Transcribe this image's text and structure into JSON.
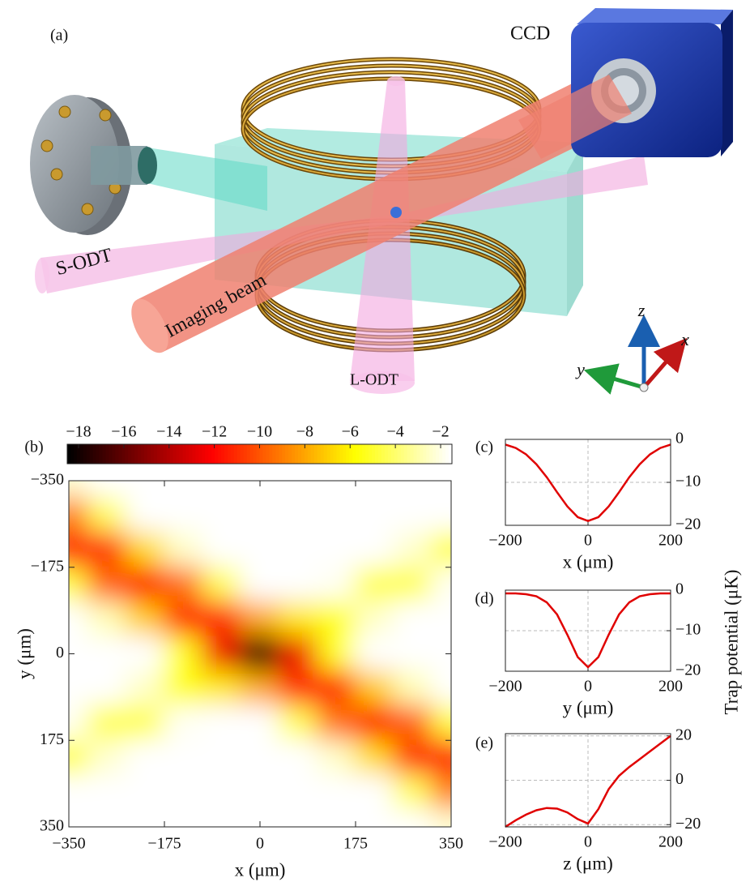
{
  "panel_a": {
    "label": "(a)",
    "ccd": "CCD",
    "s_odt": "S-ODT",
    "imaging_beam": "Imaging beam",
    "l_odt": "L-ODT",
    "axes": {
      "x": "x",
      "y": "y",
      "z": "z"
    }
  },
  "trap_potential_label": "Trap potential (μK)",
  "chart_data": [
    {
      "type": "heatmap",
      "panel_label": "(b)",
      "xlabel": "x (μm)",
      "ylabel": "y (μm)",
      "x": [
        -350,
        -280,
        -210,
        -140,
        -70,
        0,
        70,
        140,
        210,
        280,
        350
      ],
      "y": [
        -350,
        -280,
        -210,
        -140,
        -70,
        0,
        70,
        140,
        210,
        280,
        350
      ],
      "z": [
        [
          -2.3,
          -0.5,
          -0.1,
          0,
          0,
          0,
          0,
          0,
          0,
          0,
          0
        ],
        [
          -9.0,
          -4.2,
          -1.1,
          -0.2,
          0,
          0,
          0,
          0,
          0,
          -0.1,
          -0.7
        ],
        [
          -11.4,
          -11.1,
          -6.6,
          -2.4,
          -0.5,
          -0.1,
          0,
          0,
          -0.4,
          -2.3,
          -4.8
        ],
        [
          -4.7,
          -9.6,
          -12.0,
          -9.2,
          -4.3,
          -1.2,
          -0.5,
          -1.7,
          -4.4,
          -4.4,
          -1.7
        ],
        [
          -0.6,
          -2.7,
          -7.0,
          -11.3,
          -11.3,
          -7.9,
          -6.3,
          -5.4,
          -2.4,
          -0.4,
          0
        ],
        [
          0,
          -0.2,
          -1.4,
          -5.2,
          -12.5,
          -19.0,
          -12.5,
          -5.2,
          -1.4,
          -0.2,
          0
        ],
        [
          0,
          -0.4,
          -2.4,
          -5.4,
          -6.3,
          -7.9,
          -11.3,
          -11.3,
          -7.0,
          -2.7,
          -0.6
        ],
        [
          -1.7,
          -4.4,
          -4.4,
          -1.7,
          -0.5,
          -1.2,
          -4.3,
          -9.2,
          -12.0,
          -9.6,
          -4.7
        ],
        [
          -4.8,
          -2.3,
          -0.4,
          0,
          0,
          -0.1,
          -0.5,
          -2.4,
          -6.6,
          -11.1,
          -11.4
        ],
        [
          -0.7,
          -0.1,
          0,
          0,
          0,
          0,
          0,
          -0.2,
          -1.1,
          -4.2,
          -9.0
        ],
        [
          0,
          0,
          0,
          0,
          0,
          0,
          0,
          0,
          -0.1,
          -0.5,
          -2.3
        ]
      ],
      "zlim": [
        -18.5,
        -1.5
      ],
      "colormap": "hot",
      "zticks": [
        {
          "value": -18,
          "label": "−18"
        },
        {
          "value": -16,
          "label": "−16"
        },
        {
          "value": -14,
          "label": "−14"
        },
        {
          "value": -12,
          "label": "−12"
        },
        {
          "value": -10,
          "label": "−10"
        },
        {
          "value": -8,
          "label": "−8"
        },
        {
          "value": -6,
          "label": "−6"
        },
        {
          "value": -4,
          "label": "−4"
        },
        {
          "value": -2,
          "label": "−2"
        }
      ],
      "xlim": [
        -350,
        350
      ],
      "ylim": [
        -350,
        350
      ],
      "yreverse": true,
      "xticks": [
        {
          "value": -350,
          "label": "−350"
        },
        {
          "value": -175,
          "label": "−175"
        },
        0,
        175,
        350
      ],
      "yticks": [
        {
          "value": -350,
          "label": "−350"
        },
        {
          "value": -175,
          "label": "−175"
        },
        0,
        175,
        350
      ]
    },
    {
      "type": "line",
      "panel_label": "(c)",
      "xlabel": "x (μm)",
      "color": "#e00000",
      "grid": true,
      "x": [
        -200,
        -175,
        -150,
        -125,
        -100,
        -75,
        -50,
        -25,
        0,
        25,
        50,
        75,
        100,
        125,
        150,
        175,
        200
      ],
      "values": [
        -1.2,
        -2,
        -3.5,
        -5.8,
        -8.8,
        -12.3,
        -15.6,
        -18.1,
        -19,
        -18.1,
        -15.6,
        -12.3,
        -8.8,
        -5.8,
        -3.5,
        -2,
        -1.2
      ],
      "xlim": [
        -200,
        200
      ],
      "ylim": [
        -20,
        0
      ],
      "xticks": [
        {
          "value": -200,
          "label": "−200"
        },
        0,
        200
      ],
      "yticks": [
        {
          "value": -20,
          "label": "−20"
        },
        {
          "value": -10,
          "label": "−10"
        },
        0
      ]
    },
    {
      "type": "line",
      "panel_label": "(d)",
      "xlabel": "y (μm)",
      "color": "#e00000",
      "grid": true,
      "x": [
        -200,
        -175,
        -150,
        -125,
        -100,
        -75,
        -50,
        -25,
        0,
        25,
        50,
        75,
        100,
        125,
        150,
        175,
        200
      ],
      "values": [
        -0.8,
        -0.8,
        -1.0,
        -1.5,
        -3,
        -6,
        -11,
        -16.5,
        -19,
        -16.5,
        -11,
        -6,
        -3,
        -1.5,
        -1.0,
        -0.8,
        -0.8
      ],
      "xlim": [
        -200,
        200
      ],
      "ylim": [
        -20,
        0
      ],
      "xticks": [
        {
          "value": -200,
          "label": "−200"
        },
        0,
        200
      ],
      "yticks": [
        {
          "value": -20,
          "label": "−20"
        },
        {
          "value": -10,
          "label": "−10"
        },
        0
      ]
    },
    {
      "type": "line",
      "panel_label": "(e)",
      "xlabel": "z (μm)",
      "color": "#e00000",
      "grid": true,
      "x": [
        -200,
        -175,
        -150,
        -125,
        -100,
        -75,
        -50,
        -25,
        0,
        25,
        50,
        75,
        100,
        125,
        150,
        175,
        200
      ],
      "values": [
        -21,
        -18,
        -15.5,
        -13.5,
        -12.5,
        -12.8,
        -14.5,
        -17.5,
        -19.5,
        -13,
        -4,
        2,
        6,
        9.5,
        13,
        16.5,
        20
      ],
      "xlim": [
        -200,
        200
      ],
      "ylim": [
        -21,
        21
      ],
      "xticks": [
        {
          "value": -200,
          "label": "−200"
        },
        0,
        200
      ],
      "yticks": [
        {
          "value": -20,
          "label": "−20"
        },
        0,
        20
      ]
    }
  ]
}
